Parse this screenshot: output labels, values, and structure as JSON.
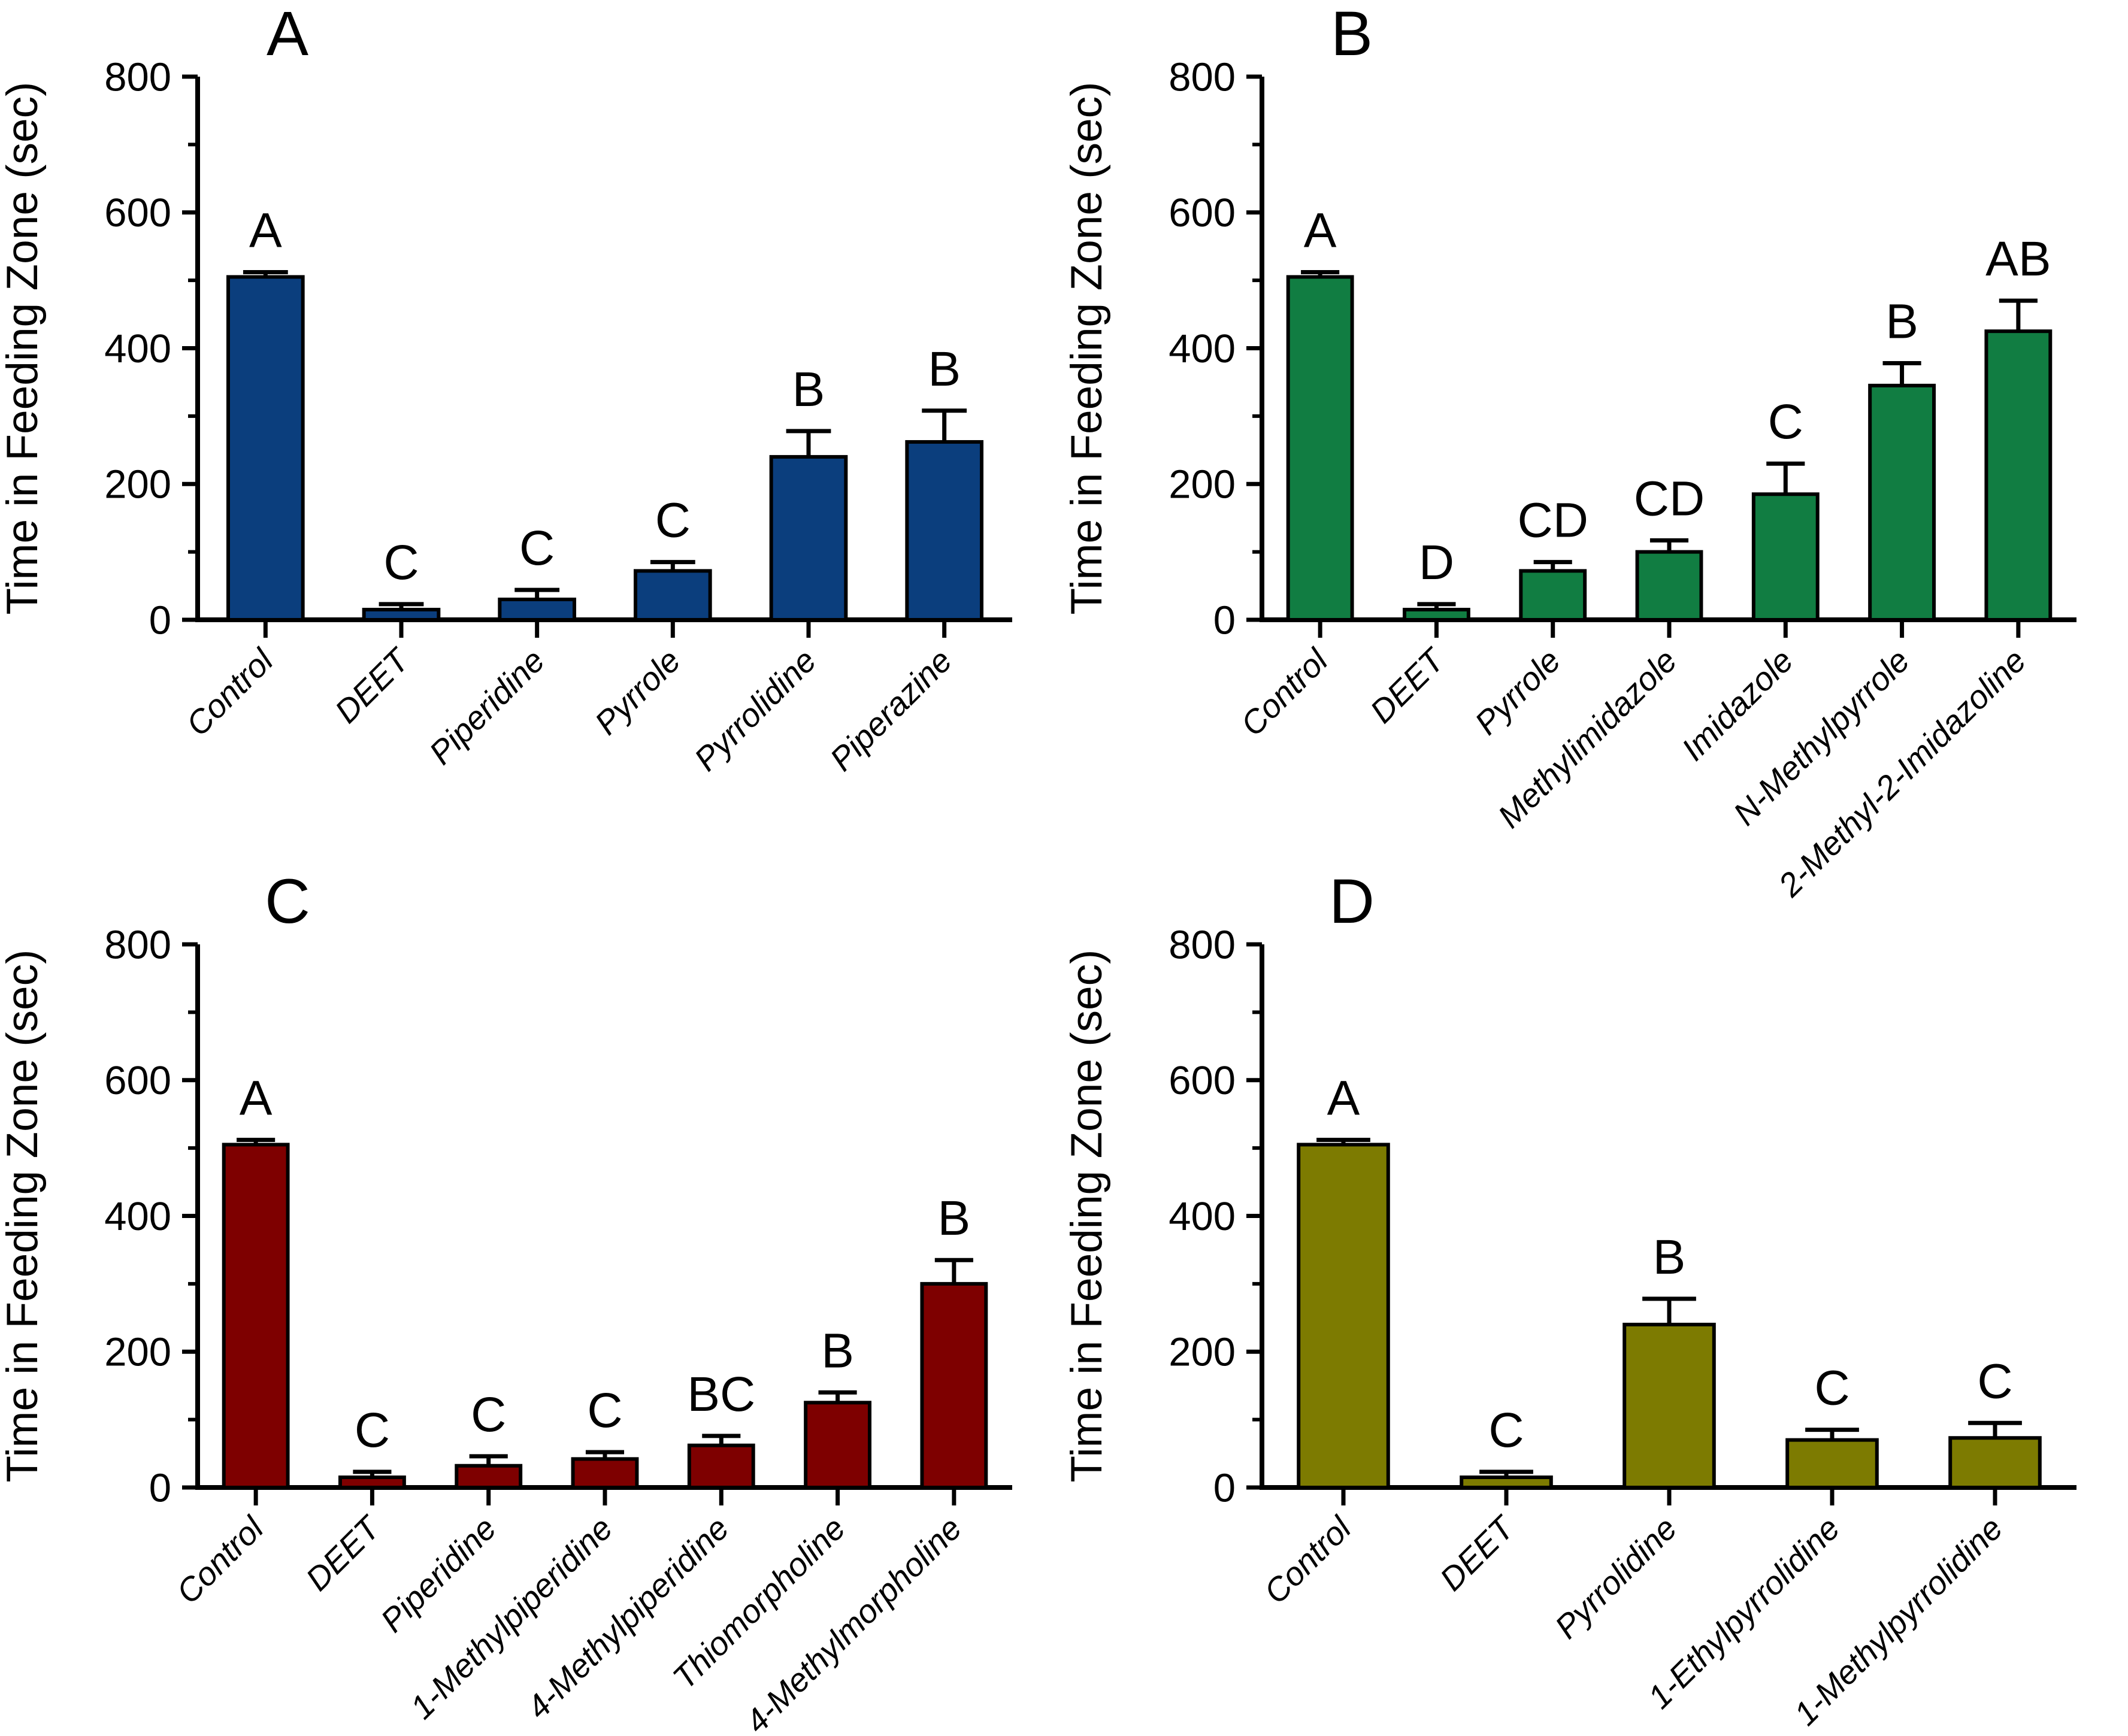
{
  "figure": {
    "background_color": "#ffffff",
    "axis_color": "#000000",
    "text_color": "#000000"
  },
  "chart_data": [
    {
      "type": "bar",
      "panel_label": "A",
      "bar_color": "#0b3e7d",
      "ylabel": "Time in Feeding Zone (sec)",
      "ylim": [
        0,
        800
      ],
      "yticks": [
        0,
        200,
        400,
        600,
        800
      ],
      "minor_tick_step": 100,
      "grid": false,
      "legend": "none",
      "categories": [
        "Control",
        "DEET",
        "Piperidine",
        "Pyrrole",
        "Pyrrolidine",
        "Piperazine"
      ],
      "values": [
        505,
        15,
        30,
        72,
        240,
        262
      ],
      "errors": [
        7,
        8,
        14,
        13,
        38,
        46
      ],
      "sig_letters": [
        "A",
        "C",
        "C",
        "C",
        "B",
        "B"
      ]
    },
    {
      "type": "bar",
      "panel_label": "B",
      "bar_color": "#117d42",
      "ylabel": "Time in Feeding Zone (sec)",
      "ylim": [
        0,
        800
      ],
      "yticks": [
        0,
        200,
        400,
        600,
        800
      ],
      "minor_tick_step": 100,
      "grid": false,
      "legend": "none",
      "categories": [
        "Control",
        "DEET",
        "Pyrrole",
        "Methylimidazole",
        "Imidazole",
        "N-Methylpyrrole",
        "2-Methyl-2-Imidazoline"
      ],
      "values": [
        505,
        15,
        72,
        100,
        185,
        345,
        425
      ],
      "errors": [
        7,
        8,
        13,
        17,
        45,
        33,
        45
      ],
      "sig_letters": [
        "A",
        "D",
        "CD",
        "CD",
        "C",
        "B",
        "AB"
      ]
    },
    {
      "type": "bar",
      "panel_label": "C",
      "bar_color": "#7e0000",
      "ylabel": "Time in Feeding Zone (sec)",
      "ylim": [
        0,
        800
      ],
      "yticks": [
        0,
        200,
        400,
        600,
        800
      ],
      "minor_tick_step": 100,
      "grid": false,
      "legend": "none",
      "categories": [
        "Control",
        "DEET",
        "Piperidine",
        "1-Methylpiperidine",
        "4-Methylpiperidine",
        "Thiomorpholine",
        "4-Methylmorpholine"
      ],
      "values": [
        505,
        15,
        32,
        42,
        62,
        125,
        300
      ],
      "errors": [
        7,
        8,
        14,
        10,
        14,
        15,
        35
      ],
      "sig_letters": [
        "A",
        "C",
        "C",
        "C",
        "BC",
        "B",
        "B"
      ]
    },
    {
      "type": "bar",
      "panel_label": "D",
      "bar_color": "#7d7b01",
      "ylabel": "Time in Feeding Zone (sec)",
      "ylim": [
        0,
        800
      ],
      "yticks": [
        0,
        200,
        400,
        600,
        800
      ],
      "minor_tick_step": 100,
      "grid": false,
      "legend": "none",
      "categories": [
        "Control",
        "DEET",
        "Pyrrolidine",
        "1-Ethylpyrrolidine",
        "1-Methylpyrrolidine"
      ],
      "values": [
        505,
        15,
        240,
        70,
        73
      ],
      "errors": [
        7,
        8,
        38,
        15,
        22
      ],
      "sig_letters": [
        "A",
        "C",
        "B",
        "C",
        "C"
      ]
    }
  ]
}
